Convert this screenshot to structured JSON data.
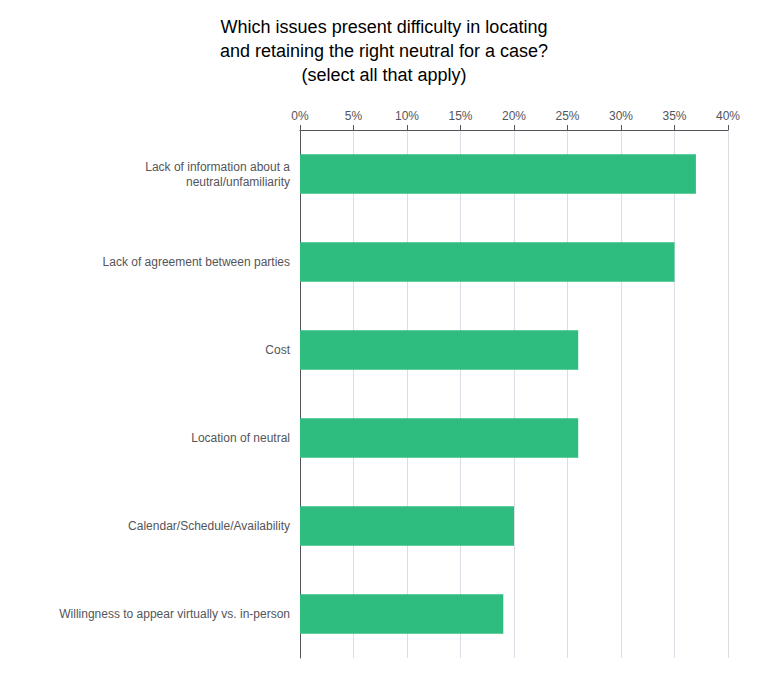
{
  "chart_data": {
    "type": "bar",
    "orientation": "horizontal",
    "title": "Which issues present difficulty in locating\nand retaining the right neutral for a case?\n(select all that apply)",
    "categories": [
      "Willingness to appear virtually vs. in-person",
      "Calendar/Schedule/Availability",
      "Location of neutral",
      "Cost",
      "Lack of agreement between parties",
      "Lack of information about a\nneutral/unfamiliarity"
    ],
    "values": [
      19,
      20,
      26,
      26,
      35,
      37
    ],
    "color": "#2ebc7f",
    "xlim": [
      0,
      40
    ],
    "xticks": [
      {
        "value": 0,
        "label": "0%"
      },
      {
        "value": 5,
        "label": "5%"
      },
      {
        "value": 10,
        "label": "10%"
      },
      {
        "value": 15,
        "label": "15%"
      },
      {
        "value": 20,
        "label": "20%"
      },
      {
        "value": 25,
        "label": "25%"
      },
      {
        "value": 30,
        "label": "30%"
      },
      {
        "value": 35,
        "label": "35%"
      },
      {
        "value": 40,
        "label": "40%"
      }
    ],
    "grid": true
  }
}
